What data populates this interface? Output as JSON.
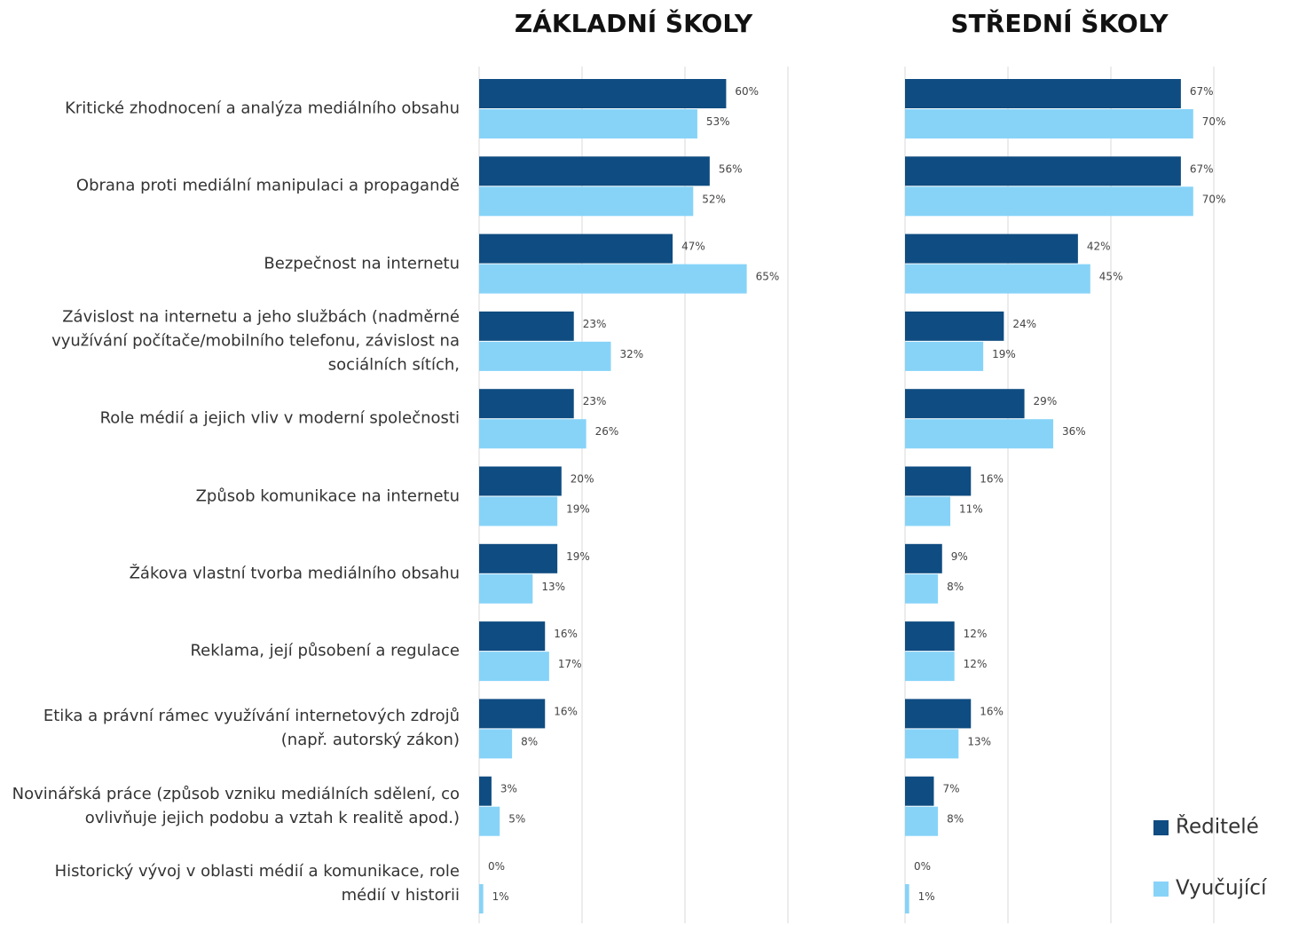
{
  "chart_data": [
    {
      "type": "hbar",
      "title": "ZÁKLADNÍ ŠKOLY",
      "categories": [
        "Kritické zhodnocení a analýza mediálního obsahu",
        "Obrana proti mediální manipulaci a propagandě",
        "Bezpečnost na internetu",
        "Závislost na internetu a jeho službách (nadměrné využívání počítače/mobilního telefonu, závislost na sociálních sítích,",
        "Role médií a jejich vliv v moderní společnosti",
        "Způsob komunikace na internetu",
        "Žákova vlastní tvorba mediálního obsahu",
        "Reklama, její působení a regulace",
        "Etika a právní rámec využívání internetových zdrojů (např. autorský zákon)",
        "Novinářská práce (způsob vzniku mediálních sdělení, co ovlivňuje jejich podobu a vztah k realitě apod.)",
        "Historický vývoj v oblasti médií a komunikace, role médií v historii"
      ],
      "series": [
        {
          "name": "Ředitelé",
          "color": "#0f4c81",
          "values": [
            60,
            56,
            47,
            23,
            23,
            20,
            19,
            16,
            16,
            3,
            0
          ],
          "value_labels": [
            "60%",
            "56%",
            "47%",
            "23%",
            "23%",
            "20%",
            "19%",
            "16%",
            "16%",
            "3%",
            "0%"
          ]
        },
        {
          "name": "Vyučující",
          "color": "#87d3f8",
          "values": [
            53,
            52,
            65,
            32,
            26,
            19,
            13,
            17,
            8,
            5,
            1
          ],
          "value_labels": [
            "53%",
            "52%",
            "65%",
            "32%",
            "26%",
            "19%",
            "13%",
            "17%",
            "8%",
            "5%",
            "1%"
          ]
        }
      ],
      "xlim": [
        0,
        75
      ],
      "xticks": [
        0,
        25,
        50,
        75
      ],
      "grid": true,
      "legend": "bottom-right"
    },
    {
      "type": "hbar",
      "title": "STŘEDNÍ ŠKOLY",
      "series": [
        {
          "color": "#0f4c81",
          "values": [
            67,
            67,
            42,
            24,
            29,
            16,
            9,
            12,
            16,
            7,
            0
          ],
          "value_labels": [
            "67%",
            "67%",
            "42%",
            "24%",
            "29%",
            "16%",
            "9%",
            "12%",
            "16%",
            "7%",
            "0%"
          ]
        },
        {
          "color": "#87d3f8",
          "values": [
            70,
            70,
            45,
            19,
            36,
            11,
            8,
            12,
            13,
            8,
            1
          ],
          "value_labels": [
            "70%",
            "70%",
            "45%",
            "19%",
            "36%",
            "11%",
            "8%",
            "12%",
            "13%",
            "8%",
            "1%"
          ]
        }
      ],
      "xlim": [
        0,
        75
      ],
      "xticks": [
        0,
        25,
        50,
        75
      ],
      "grid": true
    }
  ]
}
